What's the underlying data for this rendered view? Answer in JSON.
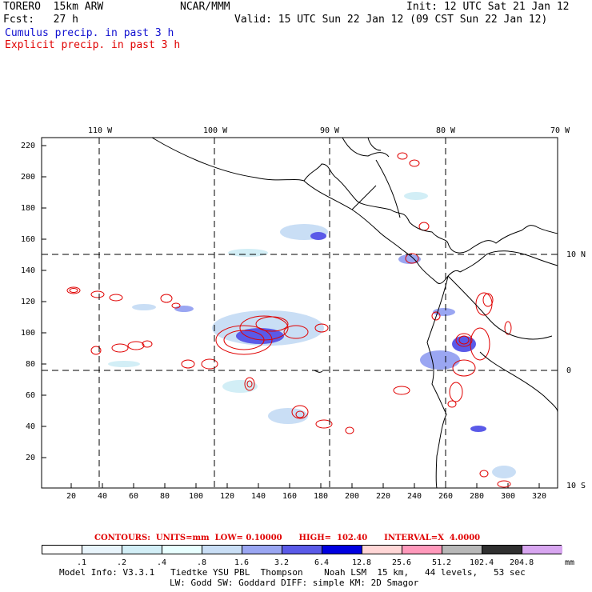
{
  "header": {
    "model": "TORERO  15km ARW",
    "center": "NCAR/MMM",
    "init": "Init: 12 UTC Sat 21 Jan 12",
    "fcst": "Fcst:   27 h",
    "valid": "Valid: 15 UTC Sun 22 Jan 12 (09 CST Sun 22 Jan 12)",
    "legend_cumulus": "Cumulus precip. in past 3 h",
    "legend_explicit": "Explicit precip. in past 3 h"
  },
  "axes": {
    "top_lon": [
      "110 W",
      "100 W",
      "90 W",
      "80 W",
      "70 W"
    ],
    "right_lat": [
      "10 N",
      "0",
      "10 S"
    ],
    "left_y": [
      "220",
      "200",
      "180",
      "160",
      "140",
      "120",
      "100",
      "80",
      "60",
      "40",
      "20"
    ],
    "bottom_x": [
      "20",
      "40",
      "60",
      "80",
      "100",
      "120",
      "140",
      "160",
      "180",
      "200",
      "220",
      "240",
      "260",
      "280",
      "300",
      "320"
    ]
  },
  "contours_info": {
    "label": "CONTOURS:  UNITS=mm  LOW= 0.10000      HIGH=  102.40      INTERVAL=X  4.0000"
  },
  "colorbar": {
    "labels": [
      ".1",
      ".2",
      ".4",
      ".8",
      "1.6",
      "3.2",
      "6.4",
      "12.8",
      "25.6",
      "51.2",
      "102.4",
      "204.8"
    ],
    "colors": [
      "#ffffff",
      "#e8f4fb",
      "#d2eef6",
      "#e8ffff",
      "#c9def5",
      "#9aa6f2",
      "#5a5ae8",
      "#0000e0",
      "#ffd6d6",
      "#ff99bb",
      "#b8b8b8",
      "#303030",
      "#d8a6f0"
    ],
    "units": "mm"
  },
  "footer": {
    "line1": "Model Info: V3.3.1   Tiedtke YSU PBL  Thompson    Noah LSM  15 km,   44 levels,   53 sec",
    "line2": "LW: Godd SW: Goddard DIFF: simple KM: 2D Smagor"
  }
}
